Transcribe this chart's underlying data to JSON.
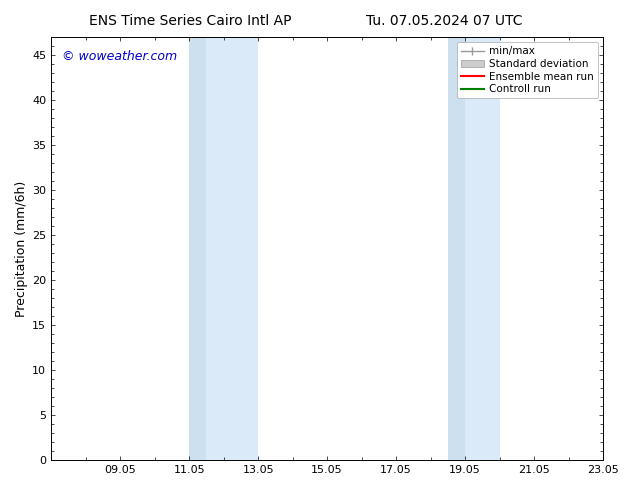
{
  "title_left": "ENS Time Series Cairo Intl AP",
  "title_right": "Tu. 07.05.2024 07 UTC",
  "ylabel": "Precipitation (mm/6h)",
  "watermark": "© woweather.com",
  "ylim": [
    0,
    47
  ],
  "yticks": [
    0,
    5,
    10,
    15,
    20,
    25,
    30,
    35,
    40,
    45
  ],
  "xtick_labels": [
    "09.05",
    "11.05",
    "13.05",
    "15.05",
    "17.05",
    "19.05",
    "21.05",
    "23.05"
  ],
  "xtick_positions": [
    2,
    4,
    6,
    8,
    10,
    12,
    14,
    16
  ],
  "shaded_regions": [
    {
      "x_start": 4.0,
      "x_end": 4.5,
      "color": "#cce0f0"
    },
    {
      "x_start": 4.5,
      "x_end": 6.0,
      "color": "#daeaf8"
    },
    {
      "x_start": 11.5,
      "x_end": 12.0,
      "color": "#cce0f0"
    },
    {
      "x_start": 12.0,
      "x_end": 13.0,
      "color": "#daeaf8"
    }
  ],
  "background_color": "#ffffff",
  "plot_bg_color": "#ffffff",
  "title_fontsize": 10,
  "watermark_color": "#0000cc",
  "watermark_fontsize": 9,
  "tick_fontsize": 8,
  "ylabel_fontsize": 9,
  "legend_fontsize": 7.5
}
